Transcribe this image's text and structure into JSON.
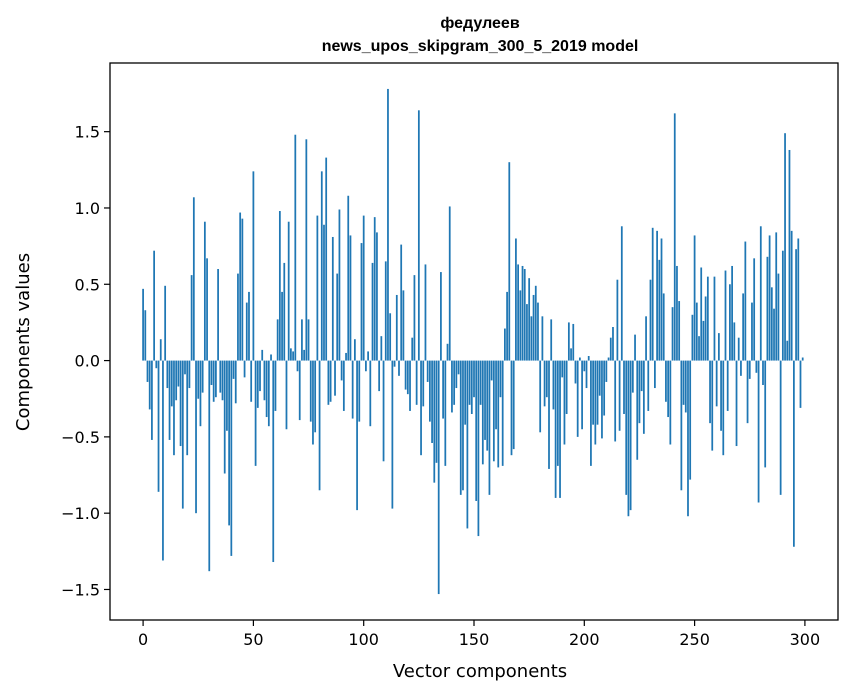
{
  "chart_data": {
    "type": "bar",
    "title_line1": "федулеев",
    "title_line2": "news_upos_skipgram_300_5_2019 model",
    "xlabel": "Vector components",
    "ylabel": "Components values",
    "xlim": [
      -15,
      315
    ],
    "ylim": [
      -1.7,
      1.95
    ],
    "x_ticks": [
      0,
      50,
      100,
      150,
      200,
      250,
      300
    ],
    "x_tick_labels": [
      "0",
      "50",
      "100",
      "150",
      "200",
      "250",
      "300"
    ],
    "y_ticks": [
      -1.5,
      -1.0,
      -0.5,
      0.0,
      0.5,
      1.0,
      1.5
    ],
    "y_tick_labels": [
      "−1.5",
      "−1.0",
      "−0.5",
      "0.0",
      "0.5",
      "1.0",
      "1.5"
    ],
    "bar_color": "#1f77b4",
    "values": [
      0.47,
      0.33,
      -0.14,
      -0.32,
      -0.52,
      0.72,
      -0.05,
      -0.86,
      0.14,
      -1.31,
      0.49,
      -0.18,
      -0.52,
      -0.3,
      -0.62,
      -0.26,
      -0.17,
      -0.56,
      -0.97,
      -0.09,
      -0.62,
      -0.18,
      0.56,
      1.07,
      -1.0,
      -0.25,
      -0.43,
      -0.21,
      0.91,
      0.67,
      -1.38,
      -0.16,
      -0.27,
      -0.24,
      0.6,
      -0.21,
      -0.26,
      -0.74,
      -0.46,
      -1.08,
      -1.28,
      -0.12,
      -0.28,
      0.57,
      0.97,
      0.93,
      -0.11,
      0.38,
      0.45,
      -0.27,
      1.24,
      -0.69,
      -0.31,
      -0.2,
      0.07,
      -0.26,
      -0.37,
      -0.43,
      0.04,
      -1.32,
      -0.33,
      0.27,
      0.98,
      0.45,
      0.64,
      -0.45,
      0.91,
      0.08,
      0.06,
      1.48,
      -0.07,
      -0.39,
      0.27,
      0.07,
      1.45,
      0.27,
      -0.4,
      -0.55,
      -0.47,
      0.95,
      -0.85,
      1.24,
      0.89,
      1.33,
      -0.29,
      -0.27,
      0.81,
      -0.23,
      0.57,
      0.99,
      -0.13,
      -0.33,
      0.05,
      1.08,
      0.82,
      -0.38,
      0.14,
      -0.98,
      -0.4,
      0.77,
      0.95,
      -0.07,
      0.06,
      -0.43,
      0.64,
      0.94,
      0.84,
      -0.2,
      0.16,
      -0.66,
      0.65,
      1.78,
      0.31,
      -0.97,
      -0.04,
      0.43,
      -0.1,
      0.76,
      0.46,
      -0.19,
      -0.22,
      -0.33,
      0.15,
      0.56,
      -0.29,
      1.64,
      -0.62,
      -0.3,
      0.63,
      -0.14,
      -0.4,
      -0.54,
      -0.8,
      -0.67,
      -1.53,
      0.58,
      -0.38,
      -0.69,
      0.11,
      1.01,
      -0.34,
      -0.29,
      -0.18,
      -0.09,
      -0.88,
      -0.85,
      -0.42,
      -1.1,
      -0.29,
      -0.35,
      -0.24,
      -0.92,
      -1.15,
      -0.29,
      -0.68,
      -0.52,
      -0.59,
      -0.88,
      -0.13,
      -0.66,
      -0.45,
      -0.7,
      -0.24,
      -0.69,
      0.21,
      0.45,
      1.3,
      -0.62,
      -0.58,
      0.8,
      0.63,
      0.46,
      0.62,
      0.6,
      0.37,
      0.54,
      0.29,
      0.43,
      0.49,
      0.38,
      -0.47,
      0.29,
      -0.3,
      -0.24,
      -0.71,
      0.27,
      -0.32,
      -0.9,
      -0.69,
      -0.9,
      -0.11,
      -0.55,
      -0.35,
      0.25,
      0.08,
      0.24,
      -0.15,
      -0.5,
      0.02,
      -0.45,
      -0.07,
      -0.18,
      0.03,
      -0.69,
      -0.42,
      -0.55,
      -0.42,
      -0.23,
      -0.51,
      -0.36,
      -0.14,
      0.02,
      0.15,
      0.22,
      -0.53,
      0.53,
      -0.46,
      0.88,
      -0.35,
      -0.88,
      -1.02,
      -0.98,
      -0.21,
      0.17,
      -0.65,
      -0.41,
      -0.2,
      -0.48,
      0.29,
      -0.33,
      0.53,
      0.87,
      -0.18,
      0.85,
      0.66,
      0.8,
      0.44,
      -0.27,
      -0.37,
      -0.55,
      0.35,
      1.62,
      0.62,
      0.39,
      -0.85,
      -0.29,
      -0.34,
      -1.02,
      -0.78,
      0.3,
      0.82,
      0.38,
      0.16,
      0.61,
      0.26,
      0.42,
      0.55,
      -0.41,
      -0.59,
      0.55,
      -0.3,
      0.18,
      -0.46,
      -0.62,
      0.59,
      -0.33,
      0.5,
      0.62,
      0.25,
      -0.56,
      0.15,
      -0.1,
      0.44,
      0.78,
      -0.41,
      -0.12,
      0.38,
      0.67,
      -0.08,
      -0.93,
      0.88,
      -0.16,
      -0.7,
      0.68,
      0.82,
      0.48,
      0.34,
      0.84,
      0.57,
      -0.88,
      0.72,
      1.49,
      0.13,
      1.38,
      0.85,
      -1.22,
      0.73,
      0.8,
      -0.31,
      0.02
    ]
  }
}
